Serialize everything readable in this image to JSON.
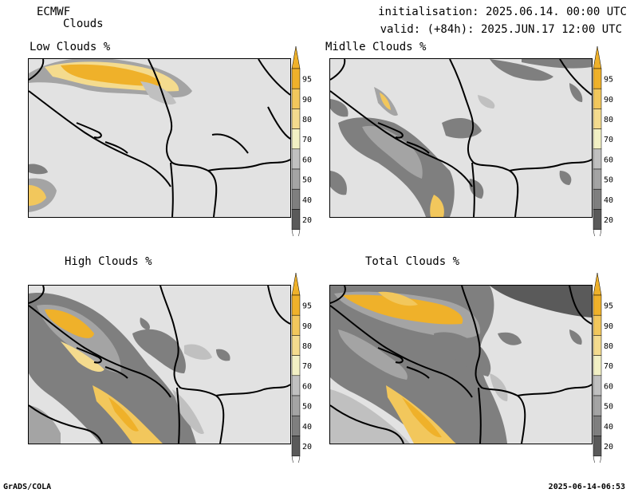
{
  "header": {
    "model": "ECMWF",
    "product": "Clouds",
    "init": "initialisation: 2025.06.14. 00:00 UTC",
    "valid": "valid: (+84h): 2025.JUN.17 12:00 UTC"
  },
  "panels": [
    {
      "title": "Low Clouds %"
    },
    {
      "title": "Midlle Clouds %"
    },
    {
      "title": "High Clouds %"
    },
    {
      "title": "Total Clouds %"
    }
  ],
  "colorbar": {
    "levels": [
      "95",
      "90",
      "80",
      "70",
      "60",
      "50",
      "40",
      "20"
    ],
    "colors": {
      "c20": "#5a5a5a",
      "c40": "#7f7f7f",
      "c50": "#a4a4a4",
      "c60": "#c0c0c0",
      "c70": "#f2f0c4",
      "c80": "#f4db8e",
      "c90": "#f2c75c",
      "c95": "#efb12a",
      "background": "#e2e2e2"
    }
  },
  "footer": {
    "left": "GrADS/COLA",
    "right": "2025-06-14-06:53"
  }
}
